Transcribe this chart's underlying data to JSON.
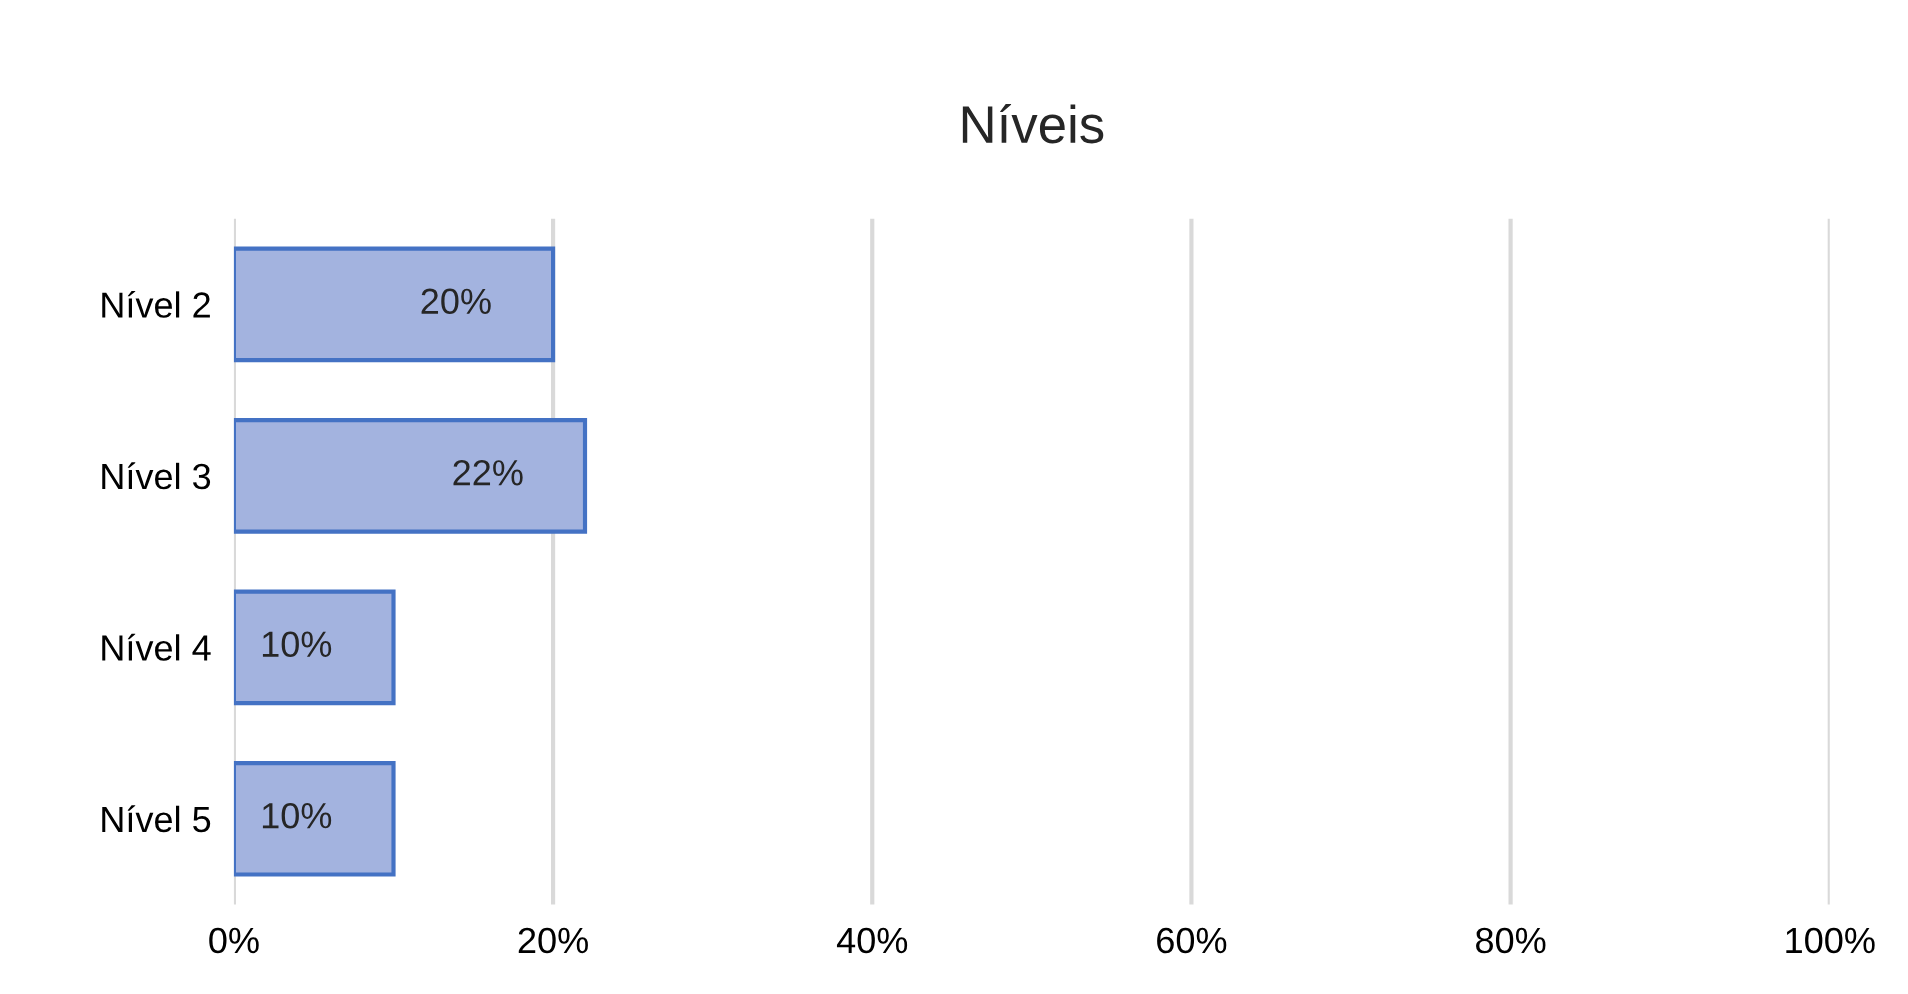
{
  "chart_data": {
    "type": "bar",
    "orientation": "horizontal",
    "title": "Níveis",
    "categories": [
      "Nível 2",
      "Nível 3",
      "Nível 4",
      "Nível 5"
    ],
    "values": [
      20,
      22,
      10,
      10
    ],
    "value_labels": [
      "20%",
      "22%",
      "10%",
      "10%"
    ],
    "color": "#a3b3df",
    "xlim": [
      0,
      100
    ],
    "xticks": [
      {
        "value": 0,
        "label": "0%"
      },
      {
        "value": 20,
        "label": "20%"
      },
      {
        "value": 40,
        "label": "40%"
      },
      {
        "value": 60,
        "label": "60%"
      },
      {
        "value": 80,
        "label": "80%"
      },
      {
        "value": 100,
        "label": "100%"
      }
    ],
    "grid": "x"
  }
}
